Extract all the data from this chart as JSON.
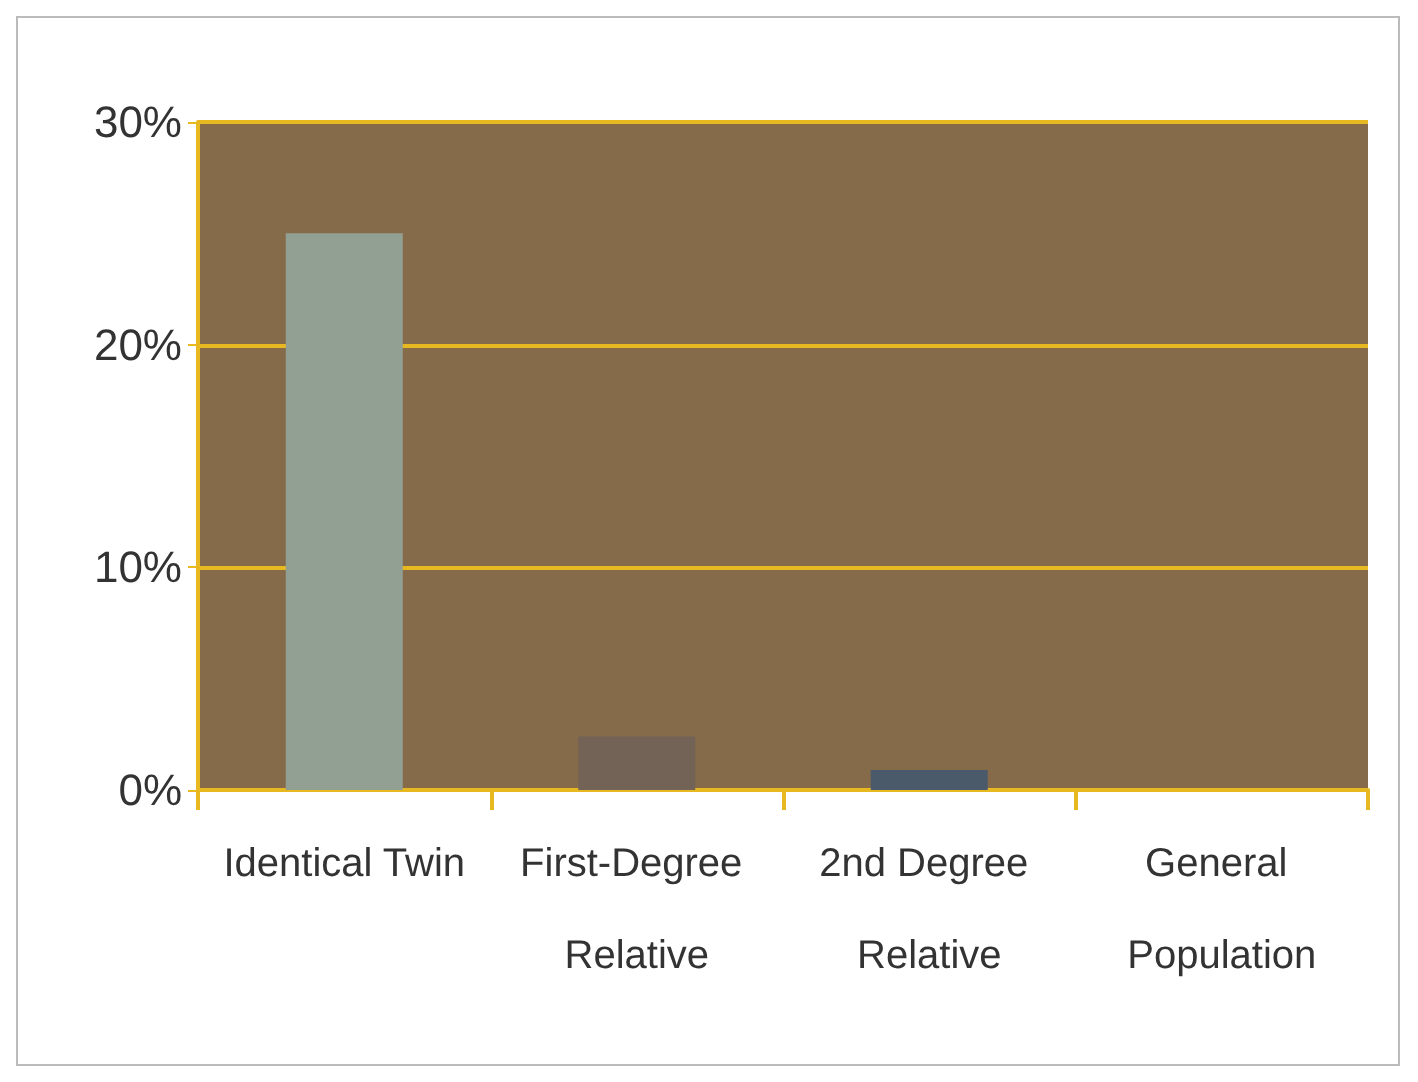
{
  "chart_data": {
    "type": "bar",
    "categories": [
      "Identical Twin",
      "First-Degree Relative",
      "2nd Degree Relative",
      "General Population"
    ],
    "values": [
      25,
      2.4,
      0.9,
      0
    ],
    "colors": [
      "#91a092",
      "#736256",
      "#4a5a6a",
      "#91a092"
    ],
    "ylim": [
      0,
      30
    ],
    "yticks": [
      {
        "value": 0,
        "label": "0%"
      },
      {
        "value": 10,
        "label": "10%"
      },
      {
        "value": 20,
        "label": "20%"
      },
      {
        "value": 30,
        "label": "30%"
      }
    ],
    "grid": "y"
  }
}
